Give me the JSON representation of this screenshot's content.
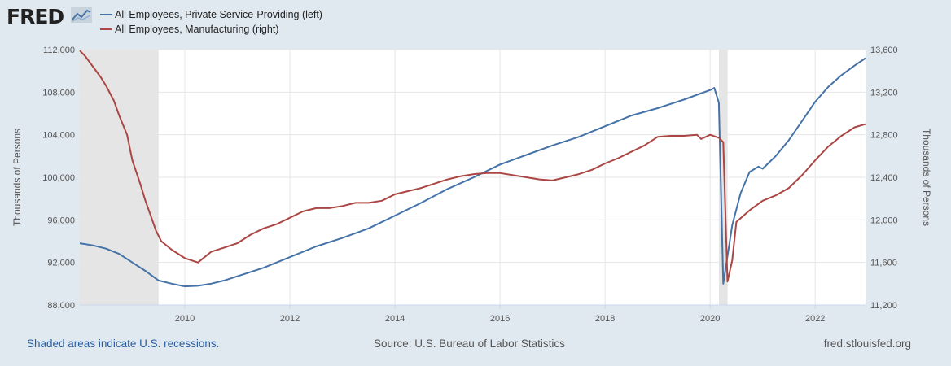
{
  "header": {
    "logo_text": "FRED",
    "logo_icon": "fred-graph-icon"
  },
  "footer": {
    "recession_note": "Shaded areas indicate U.S. recessions.",
    "source": "Source: U.S. Bureau of Labor Statistics",
    "url": "fred.stlouisfed.org"
  },
  "chart_data": {
    "type": "line",
    "title": "",
    "xlabel": "",
    "ylabel_left": "Thousands of Persons",
    "ylabel_right": "Thousands of Persons",
    "xlim": [
      2008.0,
      2022.958
    ],
    "ylim_left": [
      88000,
      112000
    ],
    "ylim_right": [
      11200,
      13600
    ],
    "x_ticks": [
      2010,
      2012,
      2014,
      2016,
      2018,
      2020,
      2022
    ],
    "x_tick_labels": [
      "2010",
      "2012",
      "2014",
      "2016",
      "2018",
      "2020",
      "2022"
    ],
    "y_left_ticks": [
      88000,
      92000,
      96000,
      100000,
      104000,
      108000,
      112000
    ],
    "y_left_tick_labels": [
      "88,000",
      "92,000",
      "96,000",
      "100,000",
      "104,000",
      "108,000",
      "112,000"
    ],
    "y_right_ticks": [
      11200,
      11600,
      12000,
      12400,
      12800,
      13200,
      13600
    ],
    "y_right_tick_labels": [
      "11,200",
      "11,600",
      "12,000",
      "12,400",
      "12,800",
      "13,200",
      "13,600"
    ],
    "grid": true,
    "legend_placement": "top-left",
    "recessions": [
      [
        2008.0,
        2009.5
      ],
      [
        2020.167,
        2020.333
      ]
    ],
    "series": [
      {
        "name": "All Employees, Private Service-Providing (left)",
        "axis": "left",
        "color": "#4572a7",
        "points": [
          [
            2008.0,
            93800
          ],
          [
            2008.25,
            93600
          ],
          [
            2008.5,
            93300
          ],
          [
            2008.75,
            92800
          ],
          [
            2009.0,
            92000
          ],
          [
            2009.25,
            91200
          ],
          [
            2009.5,
            90300
          ],
          [
            2009.75,
            90000
          ],
          [
            2010.0,
            89750
          ],
          [
            2010.25,
            89800
          ],
          [
            2010.5,
            90000
          ],
          [
            2010.75,
            90300
          ],
          [
            2011.0,
            90700
          ],
          [
            2011.5,
            91500
          ],
          [
            2012.0,
            92500
          ],
          [
            2012.5,
            93500
          ],
          [
            2013.0,
            94300
          ],
          [
            2013.5,
            95200
          ],
          [
            2014.0,
            96400
          ],
          [
            2014.5,
            97600
          ],
          [
            2015.0,
            98900
          ],
          [
            2015.5,
            100000
          ],
          [
            2016.0,
            101200
          ],
          [
            2016.5,
            102100
          ],
          [
            2017.0,
            103000
          ],
          [
            2017.5,
            103800
          ],
          [
            2018.0,
            104800
          ],
          [
            2018.5,
            105800
          ],
          [
            2019.0,
            106500
          ],
          [
            2019.5,
            107300
          ],
          [
            2020.0,
            108200
          ],
          [
            2020.08,
            108400
          ],
          [
            2020.167,
            107000
          ],
          [
            2020.25,
            90000
          ],
          [
            2020.42,
            95500
          ],
          [
            2020.58,
            98500
          ],
          [
            2020.75,
            100500
          ],
          [
            2020.92,
            101000
          ],
          [
            2021.0,
            100800
          ],
          [
            2021.25,
            102000
          ],
          [
            2021.5,
            103500
          ],
          [
            2021.75,
            105300
          ],
          [
            2022.0,
            107100
          ],
          [
            2022.25,
            108500
          ],
          [
            2022.5,
            109600
          ],
          [
            2022.75,
            110500
          ],
          [
            2022.958,
            111200
          ]
        ]
      },
      {
        "name": "All Employees, Manufacturing (right)",
        "axis": "right",
        "color": "#aa4643",
        "points": [
          [
            2008.0,
            13590
          ],
          [
            2008.1,
            13540
          ],
          [
            2008.25,
            13440
          ],
          [
            2008.4,
            13340
          ],
          [
            2008.5,
            13260
          ],
          [
            2008.65,
            13120
          ],
          [
            2008.75,
            12980
          ],
          [
            2008.9,
            12800
          ],
          [
            2009.0,
            12560
          ],
          [
            2009.15,
            12340
          ],
          [
            2009.25,
            12180
          ],
          [
            2009.35,
            12040
          ],
          [
            2009.45,
            11900
          ],
          [
            2009.55,
            11800
          ],
          [
            2009.75,
            11720
          ],
          [
            2010.0,
            11640
          ],
          [
            2010.25,
            11600
          ],
          [
            2010.5,
            11700
          ],
          [
            2010.75,
            11740
          ],
          [
            2011.0,
            11780
          ],
          [
            2011.25,
            11860
          ],
          [
            2011.5,
            11920
          ],
          [
            2011.75,
            11960
          ],
          [
            2012.0,
            12020
          ],
          [
            2012.25,
            12080
          ],
          [
            2012.5,
            12110
          ],
          [
            2012.75,
            12110
          ],
          [
            2013.0,
            12130
          ],
          [
            2013.25,
            12160
          ],
          [
            2013.5,
            12160
          ],
          [
            2013.75,
            12180
          ],
          [
            2014.0,
            12240
          ],
          [
            2014.25,
            12270
          ],
          [
            2014.5,
            12300
          ],
          [
            2014.75,
            12340
          ],
          [
            2015.0,
            12380
          ],
          [
            2015.25,
            12410
          ],
          [
            2015.5,
            12430
          ],
          [
            2015.75,
            12440
          ],
          [
            2016.0,
            12440
          ],
          [
            2016.25,
            12420
          ],
          [
            2016.5,
            12400
          ],
          [
            2016.75,
            12380
          ],
          [
            2017.0,
            12370
          ],
          [
            2017.25,
            12400
          ],
          [
            2017.5,
            12430
          ],
          [
            2017.75,
            12470
          ],
          [
            2018.0,
            12530
          ],
          [
            2018.25,
            12580
          ],
          [
            2018.5,
            12640
          ],
          [
            2018.75,
            12700
          ],
          [
            2019.0,
            12780
          ],
          [
            2019.25,
            12790
          ],
          [
            2019.5,
            12790
          ],
          [
            2019.75,
            12800
          ],
          [
            2019.83,
            12760
          ],
          [
            2020.0,
            12800
          ],
          [
            2020.17,
            12770
          ],
          [
            2020.25,
            12730
          ],
          [
            2020.33,
            11420
          ],
          [
            2020.42,
            11620
          ],
          [
            2020.5,
            11980
          ],
          [
            2020.75,
            12090
          ],
          [
            2021.0,
            12180
          ],
          [
            2021.25,
            12230
          ],
          [
            2021.5,
            12300
          ],
          [
            2021.75,
            12420
          ],
          [
            2022.0,
            12560
          ],
          [
            2022.25,
            12690
          ],
          [
            2022.5,
            12790
          ],
          [
            2022.75,
            12870
          ],
          [
            2022.958,
            12900
          ]
        ]
      }
    ]
  }
}
